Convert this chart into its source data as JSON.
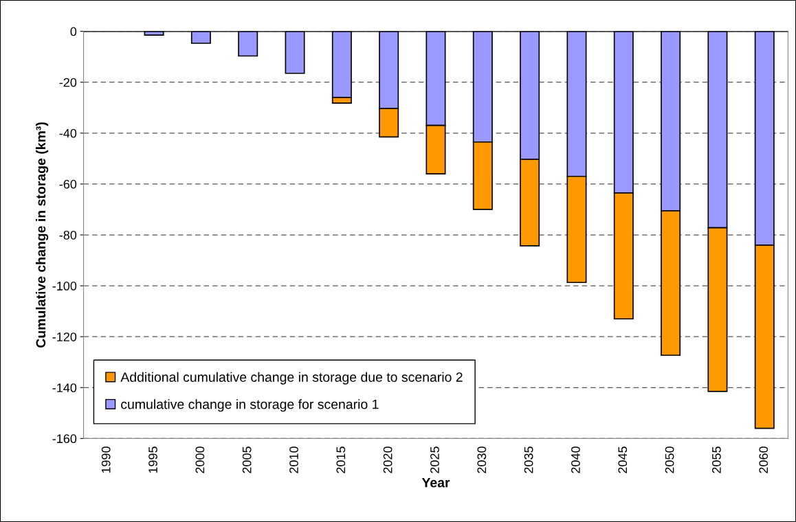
{
  "chart_data": {
    "type": "bar",
    "stacked": true,
    "xlabel": "Year",
    "ylabel": "Cumulative change in storage (km³)",
    "categories": [
      "1990",
      "1995",
      "2000",
      "2005",
      "2010",
      "2015",
      "2020",
      "2025",
      "2030",
      "2035",
      "2040",
      "2045",
      "2050",
      "2055",
      "2060"
    ],
    "series": [
      {
        "name": "cumulative change in storage for scenario 1",
        "color": "#9999ff",
        "values": [
          null,
          -1.5,
          -4.7,
          -9.7,
          -16.5,
          -26,
          -30.3,
          -37,
          -43.5,
          -50.3,
          -57,
          -63.5,
          -70.5,
          -77.2,
          -84
        ]
      },
      {
        "name": "Additional cumulative change in storage due to scenario 2",
        "color": "#ff9900",
        "values": [
          null,
          null,
          null,
          null,
          null,
          -2.2,
          -11.2,
          -19,
          -26.5,
          -34,
          -41.7,
          -49.5,
          -56.8,
          -64.3,
          -72
        ]
      }
    ],
    "ylim": [
      -160,
      0
    ],
    "yticks": [
      0,
      -20,
      -40,
      -60,
      -80,
      -100,
      -120,
      -140,
      -160
    ],
    "grid": "y",
    "legend": "bottom left"
  }
}
